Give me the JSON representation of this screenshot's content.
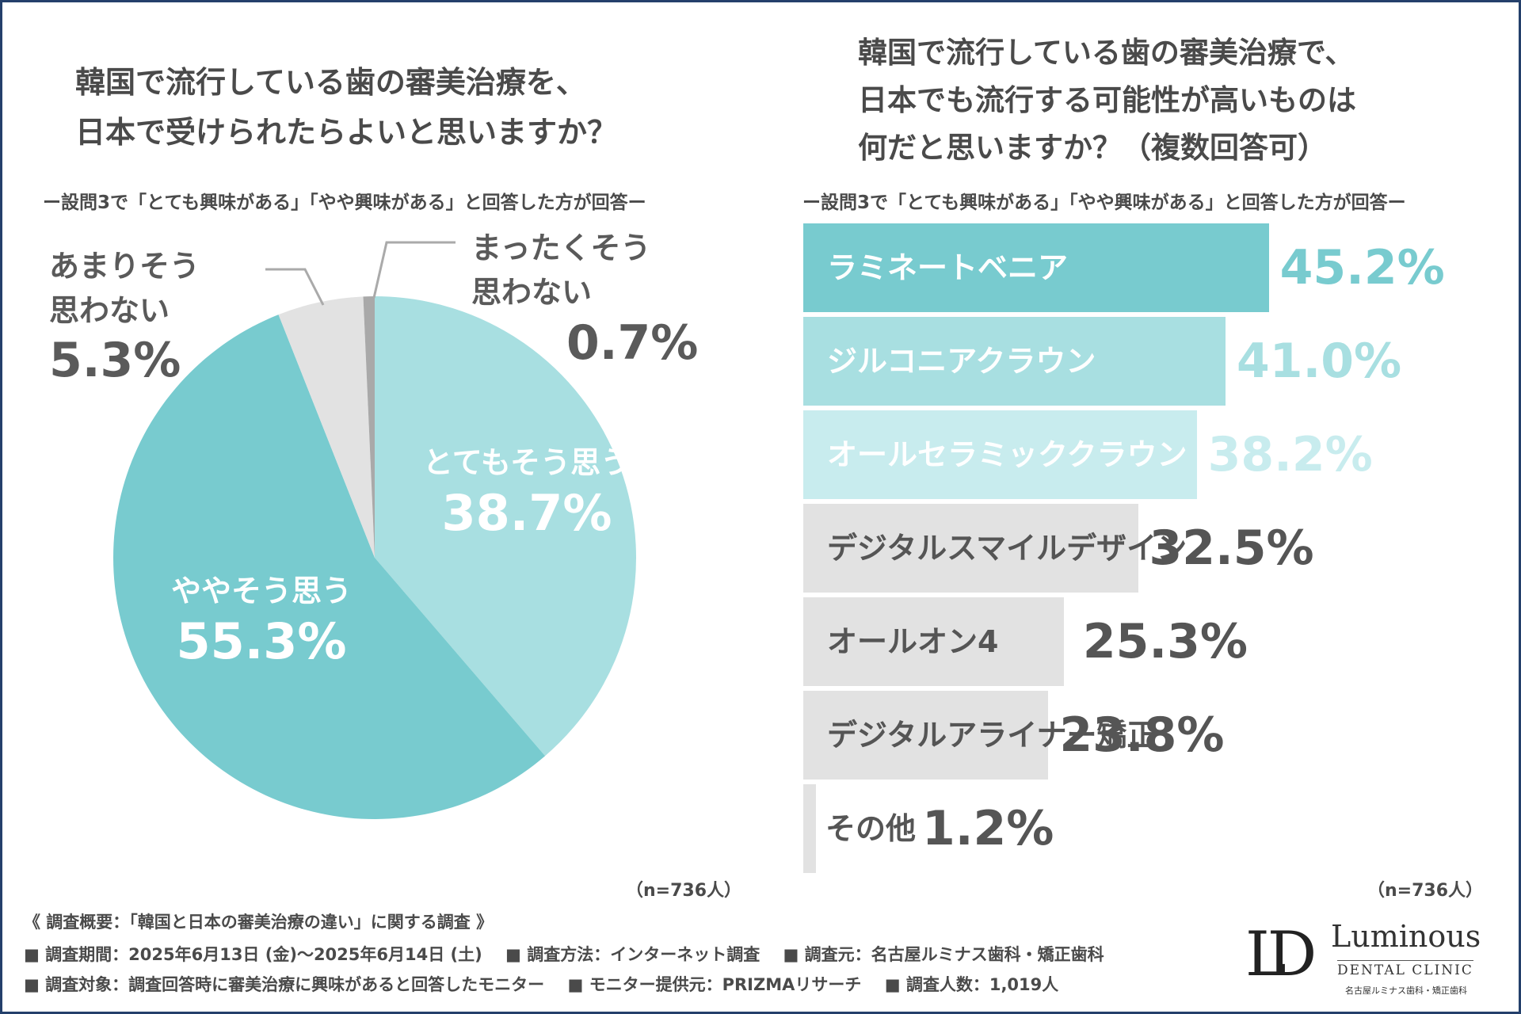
{
  "left": {
    "title_line1": "韓国で流行している歯の審美治療を、",
    "title_line2": "日本で受けられたらよいと思いますか？",
    "subtitle": "ー設問3で「とても興味がある」「やや興味がある」と回答した方が回答ー",
    "n_note": "（n=736人）"
  },
  "right": {
    "title_line1": "韓国で流行している歯の審美治療で、",
    "title_line2": "日本でも流行する可能性が高いものは",
    "title_line3": "何だと思いますか？（複数回答可）",
    "subtitle": "ー設問3で「とても興味がある」「やや興味がある」と回答した方が回答ー",
    "n_note": "（n=736人）"
  },
  "chart_data": [
    {
      "type": "pie",
      "title": "韓国で流行している歯の審美治療を、日本で受けられたらよいと思いますか？",
      "slices": [
        {
          "label": "とてもそう思う",
          "value": 38.7,
          "pct_text": "38.7%",
          "color": "#a8dfe1"
        },
        {
          "label": "ややそう思う",
          "value": 55.3,
          "pct_text": "55.3%",
          "color": "#78cbcf"
        },
        {
          "label": "あまりそう思わない",
          "label_line1": "あまりそう",
          "label_line2": "思わない",
          "value": 5.3,
          "pct_text": "5.3%",
          "color": "#e2e2e2"
        },
        {
          "label": "まったくそう思わない",
          "label_line1": "まったくそう",
          "label_line2": "思わない",
          "value": 0.7,
          "pct_text": "0.7%",
          "color": "#a9a9a9"
        }
      ]
    },
    {
      "type": "bar",
      "orientation": "horizontal",
      "title": "韓国で流行している歯の審美治療で、日本でも流行する可能性が高いものは何だと思いますか？（複数回答可）",
      "xlim": [
        0,
        100
      ],
      "bars": [
        {
          "label": "ラミネートベニア",
          "value": 45.2,
          "pct_text": "45.2%",
          "color": "#78cbcf",
          "label_color": "#ffffff",
          "value_color": "#78cbcf"
        },
        {
          "label": "ジルコニアクラウン",
          "value": 41.0,
          "pct_text": "41.0%",
          "color": "#a8dfe1",
          "label_color": "#ffffff",
          "value_color": "#a8dfe1"
        },
        {
          "label": "オールセラミッククラウン",
          "value": 38.2,
          "pct_text": "38.2%",
          "color": "#c8ecee",
          "label_color": "#ffffff",
          "value_color": "#c8ecee"
        },
        {
          "label": "デジタルスマイルデザイン",
          "value": 32.5,
          "pct_text": "32.5%",
          "color": "#e2e2e2",
          "label_color": "#555555",
          "value_color": "#555555"
        },
        {
          "label": "オールオン4",
          "value": 25.3,
          "pct_text": "25.3%",
          "color": "#e2e2e2",
          "label_color": "#555555",
          "value_color": "#555555"
        },
        {
          "label": "デジタルアライナー矯正",
          "value": 23.8,
          "pct_text": "23.8%",
          "color": "#e2e2e2",
          "label_color": "#555555",
          "value_color": "#555555"
        },
        {
          "label": "その他",
          "value": 1.2,
          "pct_text": "1.2%",
          "color": "#e2e2e2",
          "label_color": "#555555",
          "value_color": "#555555"
        }
      ]
    }
  ],
  "footer": {
    "line1": "《 調査概要：「韓国と日本の審美治療の違い」に関する調査 》",
    "period": "■ 調査期間：2025年6月13日 (金)〜2025年6月14日 (土)",
    "method": "■ 調査方法：インターネット調査",
    "source": "■ 調査元：名古屋ルミナス歯科・矯正歯科",
    "target": "■ 調査対象：調査回答時に審美治療に興味があると回答したモニター",
    "provider": "■ モニター提供元：PRIZMAリサーチ",
    "count": "■ 調査人数：1,019人"
  },
  "logo": {
    "mark": "LD",
    "name": "Luminous",
    "sub": "DENTAL CLINIC",
    "jp": "名古屋ルミナス歯科・矯正歯科"
  }
}
